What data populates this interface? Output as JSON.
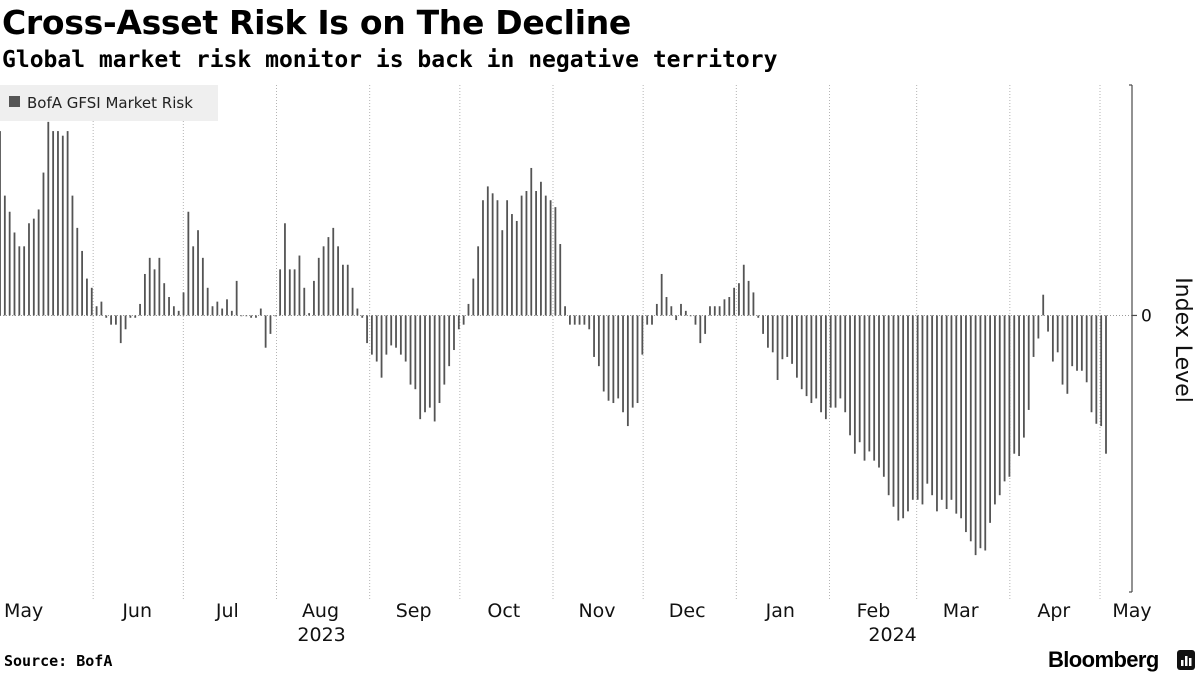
{
  "header": {
    "title": "Cross-Asset Risk Is on The Decline",
    "subtitle": "Global market risk monitor is back in negative territory"
  },
  "footer": {
    "source": "Source: BofA",
    "brand": "Bloomberg"
  },
  "colors": {
    "bar": "#545454",
    "grid": "#b4b4b4",
    "axis": "#4a4a4a",
    "legend_bg": "#efefef",
    "legend_swatch": "#555555"
  },
  "chart_data": {
    "type": "bar",
    "series": [
      {
        "name": "BofA GFSI Market Risk",
        "frequency": "daily (business days)",
        "start": "2023-05-01",
        "end": "2024-05-03",
        "values": [
          0.8,
          0.52,
          0.45,
          0.36,
          0.3,
          0.3,
          0.4,
          0.42,
          0.46,
          0.62,
          0.84,
          0.8,
          0.8,
          0.78,
          0.8,
          0.52,
          0.38,
          0.28,
          0.16,
          0.12,
          0.04,
          0.06,
          -0.01,
          -0.04,
          -0.04,
          -0.12,
          -0.06,
          -0.01,
          -0.01,
          0.05,
          0.18,
          0.25,
          0.2,
          0.25,
          0.14,
          0.08,
          0.04,
          0.02,
          0.1,
          0.45,
          0.3,
          0.37,
          0.25,
          0.12,
          0.04,
          0.06,
          0.03,
          0.07,
          0.02,
          0.15,
          0.0,
          0.0,
          -0.01,
          -0.01,
          0.03,
          -0.14,
          -0.08,
          0.0,
          0.2,
          0.4,
          0.2,
          0.2,
          0.26,
          0.12,
          0.01,
          0.15,
          0.25,
          0.3,
          0.34,
          0.38,
          0.3,
          0.22,
          0.22,
          0.12,
          0.03,
          -0.01,
          -0.12,
          -0.17,
          -0.2,
          -0.27,
          -0.17,
          -0.13,
          -0.14,
          -0.17,
          -0.2,
          -0.3,
          -0.32,
          -0.45,
          -0.42,
          -0.4,
          -0.46,
          -0.38,
          -0.3,
          -0.22,
          -0.15,
          -0.06,
          -0.04,
          0.05,
          0.16,
          0.3,
          0.5,
          0.56,
          0.53,
          0.5,
          0.37,
          0.5,
          0.44,
          0.41,
          0.52,
          0.54,
          0.64,
          0.54,
          0.58,
          0.52,
          0.5,
          0.47,
          0.31,
          0.04,
          -0.04,
          -0.04,
          -0.04,
          -0.04,
          -0.06,
          -0.18,
          -0.22,
          -0.33,
          -0.37,
          -0.38,
          -0.36,
          -0.42,
          -0.48,
          -0.4,
          -0.38,
          -0.17,
          -0.04,
          -0.04,
          0.05,
          0.18,
          0.08,
          0.04,
          -0.02,
          0.05,
          0.02,
          0.0,
          -0.04,
          -0.12,
          -0.08,
          0.04,
          0.04,
          0.04,
          0.07,
          0.08,
          0.12,
          0.14,
          0.22,
          0.15,
          0.1,
          -0.01,
          -0.08,
          -0.14,
          -0.16,
          -0.28,
          -0.19,
          -0.18,
          -0.21,
          -0.27,
          -0.32,
          -0.35,
          -0.38,
          -0.36,
          -0.42,
          -0.45,
          -0.4,
          -0.4,
          -0.36,
          -0.42,
          -0.52,
          -0.6,
          -0.55,
          -0.63,
          -0.59,
          -0.63,
          -0.66,
          -0.7,
          -0.78,
          -0.83,
          -0.89,
          -0.88,
          -0.85,
          -0.8,
          -0.8,
          -0.82,
          -0.73,
          -0.78,
          -0.85,
          -0.8,
          -0.84,
          -0.8,
          -0.86,
          -0.88,
          -0.94,
          -0.98,
          -1.04,
          -1.01,
          -1.02,
          -0.9,
          -0.82,
          -0.78,
          -0.72,
          -0.7,
          -0.6,
          -0.61,
          -0.53,
          -0.41,
          -0.18,
          -0.1,
          0.09,
          -0.07,
          -0.2,
          -0.16,
          -0.3,
          -0.34,
          -0.22,
          -0.24,
          -0.24,
          -0.29,
          -0.42,
          -0.47,
          -0.48,
          -0.6
        ]
      }
    ],
    "x_ticks": [
      {
        "label": "May",
        "date": "2023-05-01"
      },
      {
        "label": "Jun",
        "date": "2023-06-01"
      },
      {
        "label": "Jul",
        "date": "2023-07-01"
      },
      {
        "label": "Aug",
        "date": "2023-08-01"
      },
      {
        "label": "Sep",
        "date": "2023-09-01"
      },
      {
        "label": "Oct",
        "date": "2023-10-01"
      },
      {
        "label": "Nov",
        "date": "2023-11-01"
      },
      {
        "label": "Dec",
        "date": "2023-12-01"
      },
      {
        "label": "Jan",
        "date": "2024-01-01"
      },
      {
        "label": "Feb",
        "date": "2024-02-01"
      },
      {
        "label": "Mar",
        "date": "2024-03-01"
      },
      {
        "label": "Apr",
        "date": "2024-04-01"
      },
      {
        "label": "May",
        "date": "2024-05-01"
      }
    ],
    "year_labels": [
      {
        "label": "2023",
        "date": "2023-08-16"
      },
      {
        "label": "2024",
        "date": "2024-02-22"
      }
    ],
    "y_ticks": [
      0
    ],
    "ylim": [
      -1.2,
      1.0
    ],
    "ylabel": "Index Level",
    "xlabel": "",
    "legend": {
      "label": "BofA GFSI Market Risk",
      "placement": "top-left"
    },
    "grid": "vertical dotted at month boundaries"
  }
}
